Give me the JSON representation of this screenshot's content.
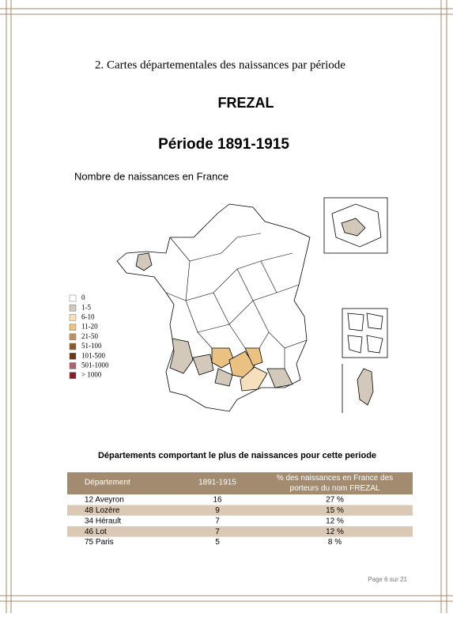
{
  "header": {
    "section": "2. Cartes départementales des naissances par période",
    "name": "FREZAL",
    "period": "Période 1891-1915"
  },
  "map": {
    "title": "Nombre de naissances en France",
    "legend": [
      {
        "label": "0",
        "color": "#ffffff"
      },
      {
        "label": "1-5",
        "color": "#d3c9bb"
      },
      {
        "label": "6-10",
        "color": "#f6dfbc"
      },
      {
        "label": "11-20",
        "color": "#e9c283"
      },
      {
        "label": "21-50",
        "color": "#b99262"
      },
      {
        "label": "51-100",
        "color": "#8a5a2c"
      },
      {
        "label": "101-500",
        "color": "#6a3a12"
      },
      {
        "label": "501-1000",
        "color": "#b06272"
      },
      {
        "label": "> 1000",
        "color": "#8c1b2b"
      }
    ]
  },
  "table": {
    "title": "Départements comportant le plus de naissances pour cette periode",
    "header": [
      "Département",
      "1891-1915",
      "% des naissances en France des porteurs du nom FREZAL"
    ],
    "rows": [
      [
        "12 Aveyron",
        "16",
        "27 %"
      ],
      [
        "48 Lozère",
        "9",
        "15 %"
      ],
      [
        "34 Hérault",
        "7",
        "12 %"
      ],
      [
        "46 Lot",
        "7",
        "12 %"
      ],
      [
        "75 Paris",
        "5",
        "8 %"
      ]
    ]
  },
  "footer": {
    "page": "Page 6 sur 21"
  }
}
